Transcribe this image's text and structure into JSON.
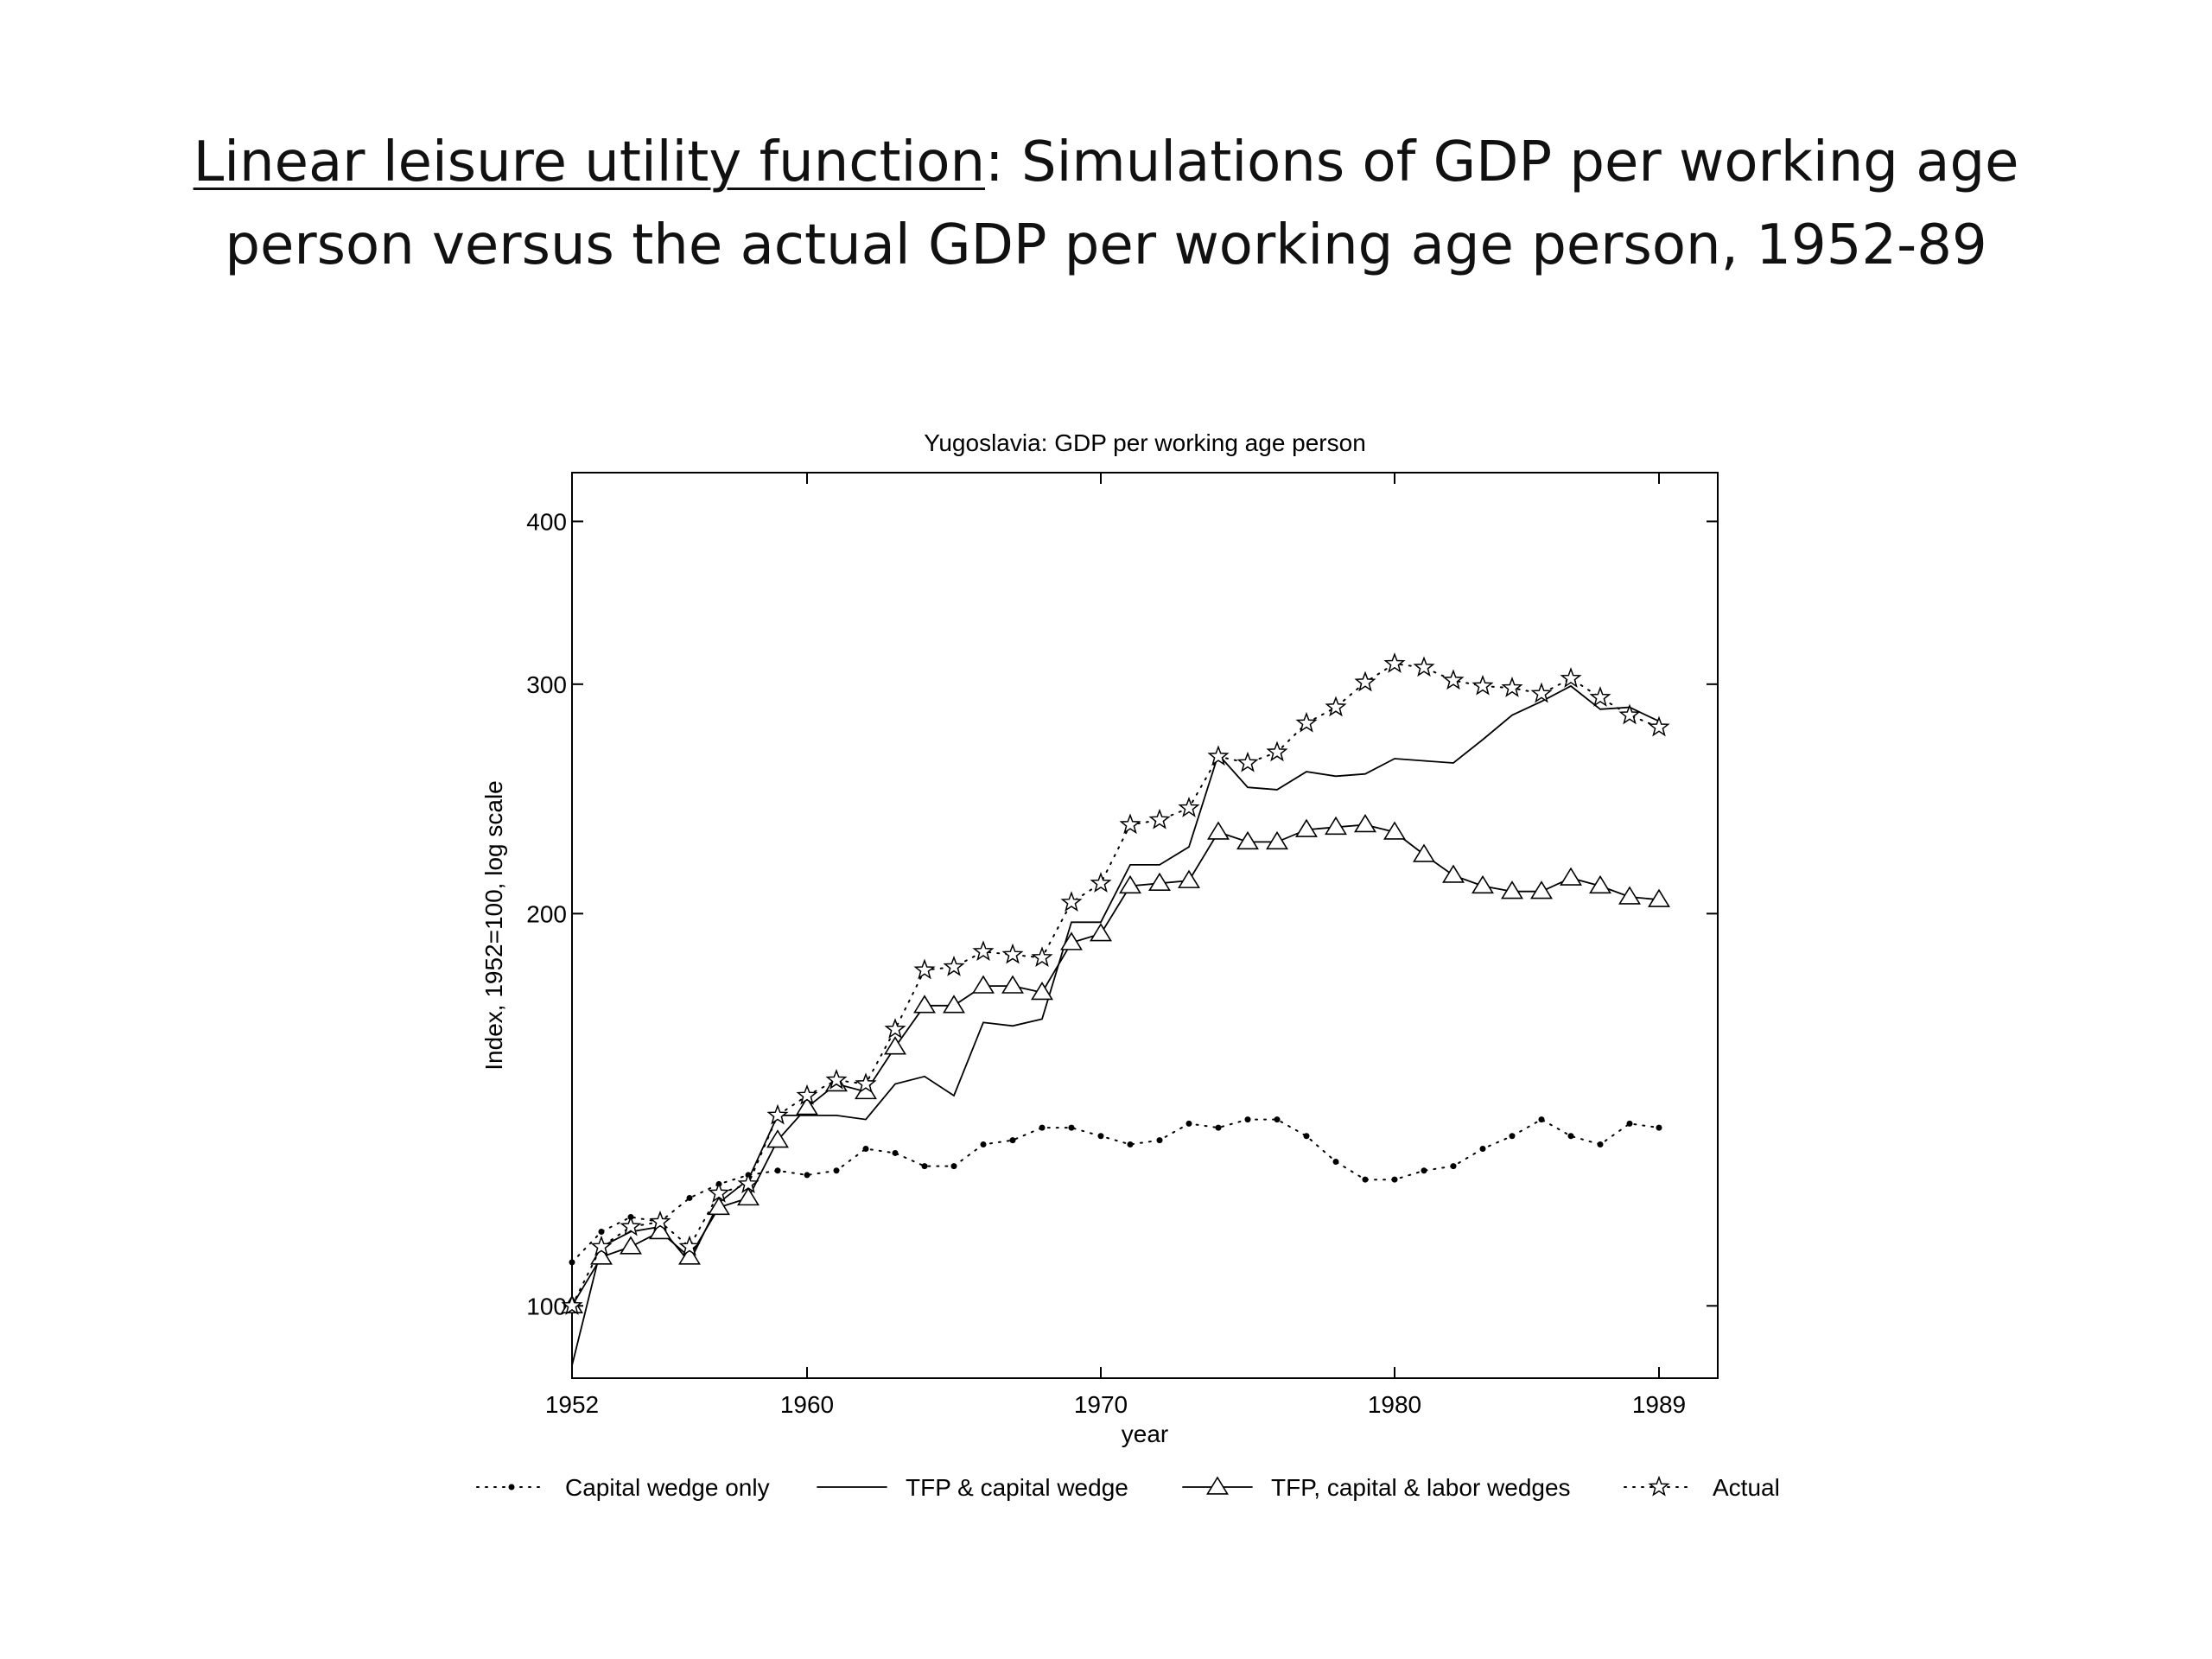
{
  "slide": {
    "title_underlined": "Linear leisure utility function",
    "title_rest": ": Simulations of GDP per working age",
    "title_line2": "person versus the actual GDP per working age person, 1952-89"
  },
  "chart_data": {
    "type": "line",
    "title": "Yugoslavia: GDP per working age person",
    "xlabel": "year",
    "ylabel": "Index, 1952=100, log scale",
    "y_scale": "log",
    "xlim": [
      1952,
      1991
    ],
    "ylim": [
      88,
      436
    ],
    "x_ticks": [
      1952,
      1960,
      1970,
      1980,
      1989
    ],
    "x_tick_labels": [
      "1952",
      "1960",
      "1970",
      "1980",
      "1989"
    ],
    "y_ticks": [
      100,
      200,
      300,
      400
    ],
    "y_tick_labels": [
      "100",
      "200",
      "300",
      "400"
    ],
    "grid": false,
    "legend_position": "bottom",
    "x": [
      1952,
      1953,
      1954,
      1955,
      1956,
      1957,
      1958,
      1959,
      1960,
      1961,
      1962,
      1963,
      1964,
      1965,
      1966,
      1967,
      1968,
      1969,
      1970,
      1971,
      1972,
      1973,
      1974,
      1975,
      1976,
      1977,
      1978,
      1979,
      1980,
      1981,
      1982,
      1983,
      1984,
      1985,
      1986,
      1987,
      1988,
      1989
    ],
    "series": [
      {
        "name": "Capital wedge only",
        "style": "dotted",
        "marker": "dot",
        "color": "#000000",
        "values": [
          108,
          114,
          117,
          116,
          121,
          124,
          126,
          127,
          126,
          127,
          132,
          131,
          128,
          128,
          133,
          134,
          137,
          137,
          135,
          133,
          134,
          138,
          137,
          139,
          139,
          135,
          129,
          125,
          125,
          127,
          128,
          132,
          135,
          139,
          135,
          133,
          138,
          137
        ]
      },
      {
        "name": "TFP & capital wedge",
        "style": "solid",
        "marker": "none",
        "color": "#000000",
        "values": [
          90,
          111,
          114,
          115,
          108,
          120,
          125,
          140,
          140,
          140,
          139,
          148,
          150,
          145,
          165,
          164,
          166,
          197,
          197,
          218,
          218,
          225,
          265,
          250,
          249,
          257,
          255,
          256,
          263,
          262,
          261,
          272,
          284,
          291,
          299,
          287,
          288,
          281
        ]
      },
      {
        "name": "TFP, capital & labor wedges",
        "style": "solid",
        "marker": "triangle",
        "color": "#000000",
        "values": [
          100,
          109,
          111,
          114,
          109,
          119,
          121,
          134,
          142,
          148,
          146,
          158,
          170,
          170,
          176,
          176,
          174,
          190,
          193,
          210,
          211,
          212,
          231,
          227,
          227,
          232,
          233,
          234,
          231,
          222,
          214,
          210,
          208,
          208,
          213,
          210,
          206,
          205
        ]
      },
      {
        "name": "Actual",
        "style": "dotted",
        "marker": "star",
        "color": "#000000",
        "values": [
          100,
          111,
          115,
          116,
          111,
          122,
          124,
          140,
          145,
          149,
          148,
          163,
          181,
          182,
          187,
          186,
          185,
          204,
          211,
          234,
          236,
          241,
          264,
          261,
          266,
          280,
          288,
          301,
          311,
          309,
          302,
          299,
          298,
          295,
          303,
          293,
          284,
          278
        ]
      }
    ]
  }
}
